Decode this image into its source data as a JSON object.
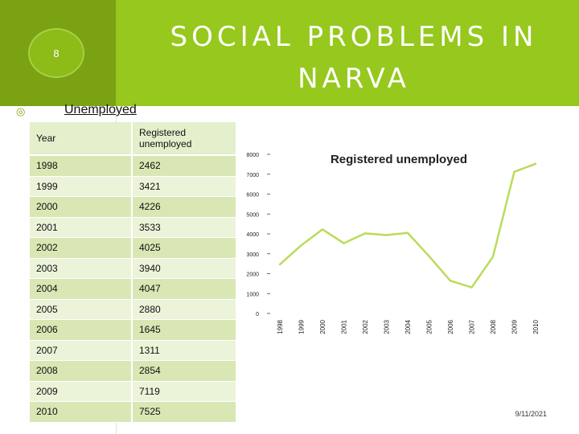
{
  "slide": {
    "number": "8",
    "title": "SOCIAL PROBLEMS IN NARVA",
    "subheading": "Unemployed",
    "date": "9/11/2021"
  },
  "table": {
    "headers": [
      "Year",
      "Registered unemployed"
    ],
    "rows": [
      [
        "1998",
        "2462"
      ],
      [
        "1999",
        "3421"
      ],
      [
        "2000",
        "4226"
      ],
      [
        "2001",
        "3533"
      ],
      [
        "2002",
        "4025"
      ],
      [
        "2003",
        "3940"
      ],
      [
        "2004",
        "4047"
      ],
      [
        "2005",
        "2880"
      ],
      [
        "2006",
        "1645"
      ],
      [
        "2007",
        "1311"
      ],
      [
        "2008",
        "2854"
      ],
      [
        "2009",
        "7119"
      ],
      [
        "2010",
        "7525"
      ]
    ]
  },
  "colors": {
    "accent_dark": "#7aa213",
    "accent_light": "#96c81d",
    "line": "#b9dc5a"
  },
  "chart_data": {
    "type": "line",
    "title": "Registered unemployed",
    "categories": [
      "1998",
      "1999",
      "2000",
      "2001",
      "2002",
      "2003",
      "2004",
      "2005",
      "2006",
      "2007",
      "2008",
      "2009",
      "2010"
    ],
    "values": [
      2462,
      3421,
      4226,
      3533,
      4025,
      3940,
      4047,
      2880,
      1645,
      1311,
      2854,
      7119,
      7525
    ],
    "yticks": [
      0,
      1000,
      2000,
      3000,
      4000,
      5000,
      6000,
      7000,
      8000
    ],
    "ylim": [
      0,
      8000
    ],
    "grid": false,
    "legend": "none"
  }
}
